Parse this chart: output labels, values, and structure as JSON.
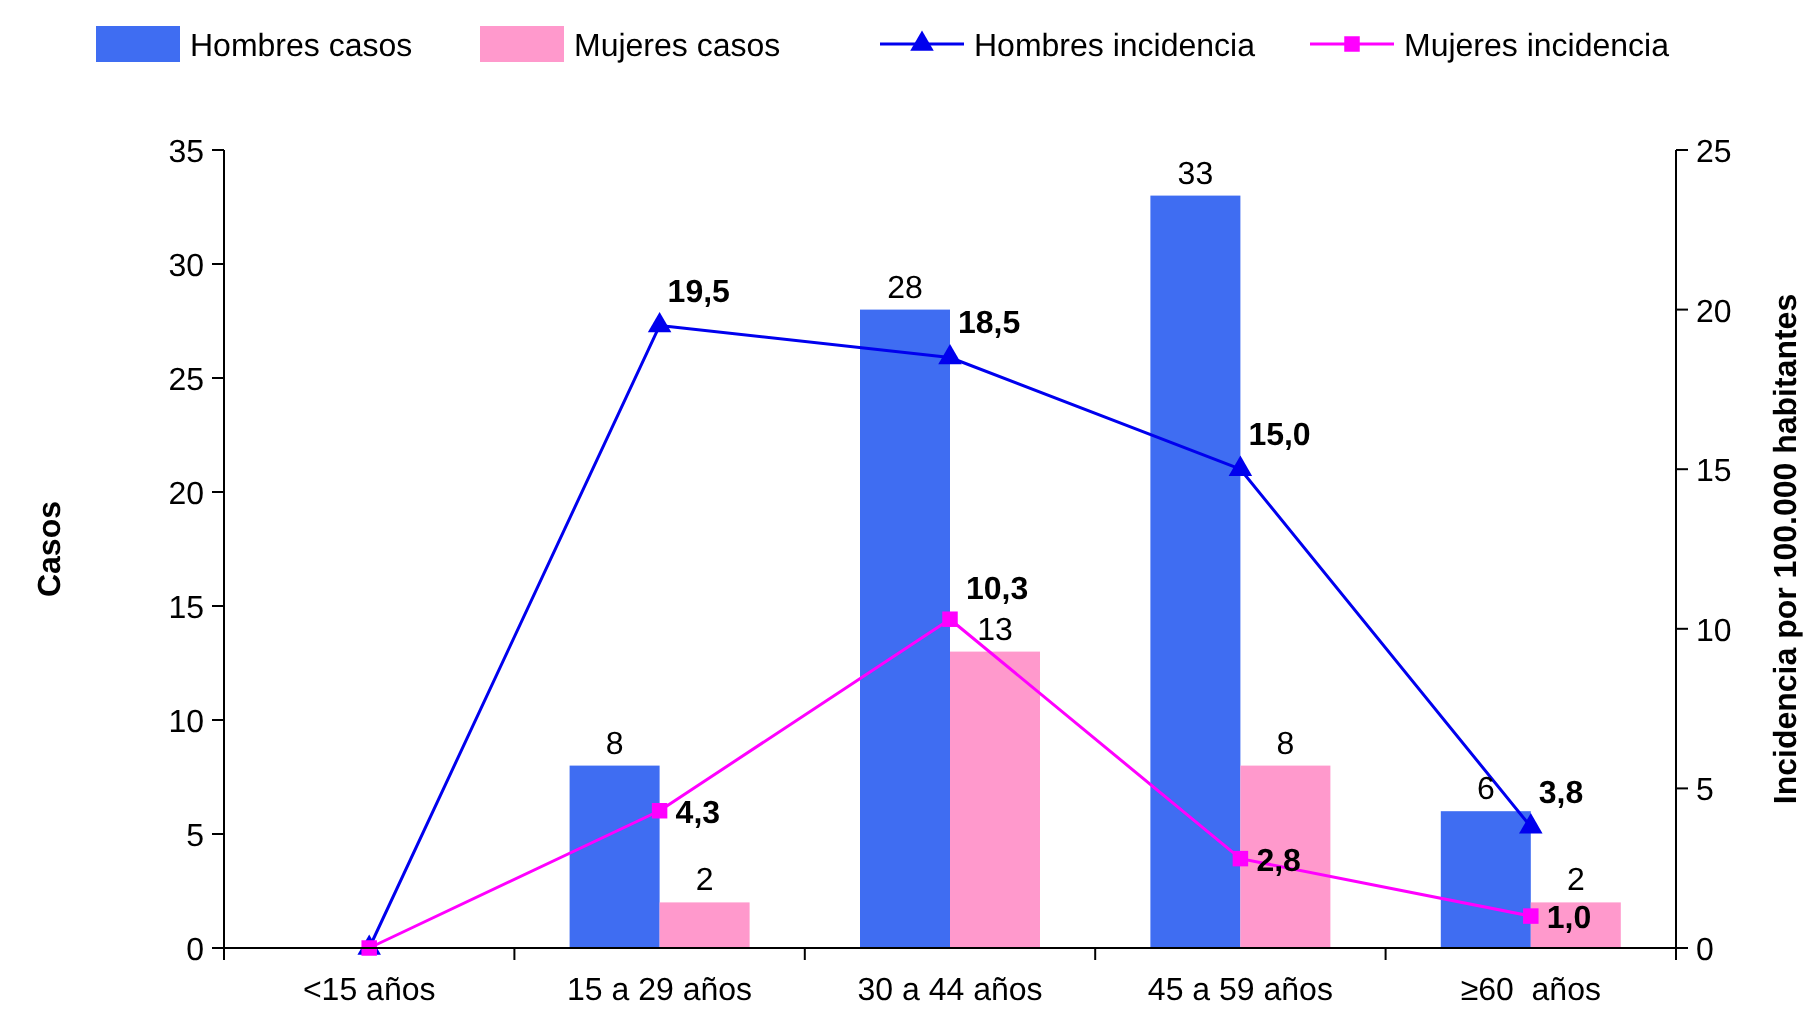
{
  "chart_data": {
    "type": "bar",
    "categories": [
      "<15 años",
      "15 a 29 años",
      "30 a 44 años",
      "45 a 59 años",
      "≥60  años"
    ],
    "ylabel": "Casos",
    "y2label": "Incidencia por 100.000 habitantes",
    "ylim": [
      0,
      35
    ],
    "yticks": [
      0,
      5,
      10,
      15,
      20,
      25,
      30,
      35
    ],
    "y2lim": [
      0,
      25
    ],
    "y2ticks": [
      0,
      5,
      10,
      15,
      20,
      25
    ],
    "legend": "top",
    "grid": false,
    "series": [
      {
        "name": "Hombres casos",
        "color": "#3f6df2",
        "values": [
          null,
          8,
          28,
          33,
          6
        ],
        "value_labels": [
          null,
          "8",
          "28",
          "33",
          "6"
        ]
      },
      {
        "name": "Mujeres casos",
        "color": "#ff99cc",
        "values": [
          null,
          2,
          13,
          8,
          2
        ],
        "value_labels": [
          null,
          "2",
          "13",
          "8",
          "2"
        ]
      },
      {
        "name": "Hombres incidencia",
        "type": "line",
        "axis": "y2",
        "marker": "triangle",
        "color": "#0000ee",
        "values": [
          0,
          19.5,
          18.5,
          15.0,
          3.8
        ],
        "value_labels": [
          null,
          "19,5",
          "18,5",
          "15,0",
          "3,8"
        ]
      },
      {
        "name": "Mujeres incidencia",
        "type": "line",
        "axis": "y2",
        "marker": "square",
        "color": "#ff00ff",
        "values": [
          0,
          4.3,
          10.3,
          2.8,
          1.0
        ],
        "value_labels": [
          null,
          "4,3",
          "10,3",
          "2,8",
          "1,0"
        ]
      }
    ]
  }
}
